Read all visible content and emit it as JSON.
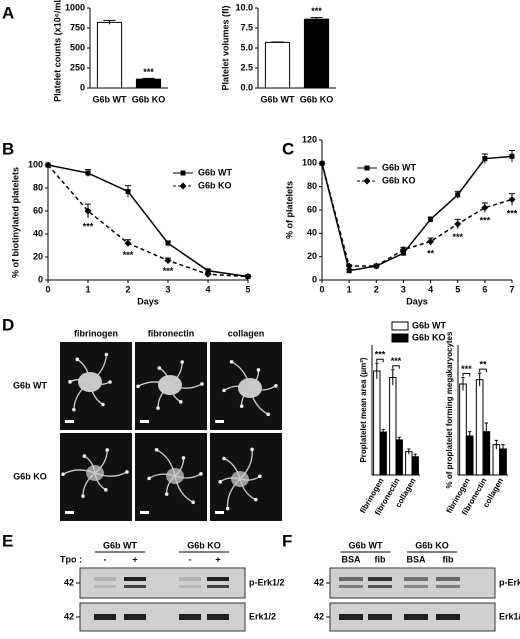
{
  "panels": [
    "A",
    "B",
    "C",
    "D",
    "E",
    "F"
  ],
  "chart_data": [
    {
      "type": "bar",
      "ylabel": "Platelet counts (x10⁶/mL)",
      "categories": [
        "G6b WT",
        "G6b KO"
      ],
      "values": [
        820,
        110
      ],
      "errors": [
        25,
        10
      ],
      "colors": [
        "#ffffff",
        "#000000"
      ],
      "ylim": [
        0,
        1000
      ],
      "yticks": [
        0,
        250,
        500,
        750,
        1000
      ],
      "annotations": [
        {
          "text": "***",
          "x": 1
        }
      ]
    },
    {
      "type": "bar",
      "ylabel": "Platelet volumes (fl)",
      "categories": [
        "G6b WT",
        "G6b KO"
      ],
      "values": [
        5.7,
        8.6
      ],
      "errors": [
        0.05,
        0.2
      ],
      "colors": [
        "#ffffff",
        "#000000"
      ],
      "ylim": [
        0,
        10
      ],
      "yticks": [
        {
          "value": 0,
          "label": "0.0"
        },
        2.5,
        {
          "value": 5,
          "label": "5.0"
        },
        7.5,
        {
          "value": 10,
          "label": "10.0"
        }
      ],
      "annotations": [
        {
          "text": "***",
          "x": 1
        }
      ]
    },
    {
      "type": "line",
      "ylabel": "% of biotinylated platelets",
      "xlabel": "Days",
      "x": [
        0,
        1,
        2,
        3,
        4,
        5
      ],
      "xlim": [
        0,
        5
      ],
      "xticks": [
        0,
        1,
        2,
        3,
        4,
        5
      ],
      "ylim": [
        0,
        100
      ],
      "yticks": [
        0,
        20,
        40,
        60,
        80,
        100
      ],
      "series": [
        {
          "name": "G6b WT",
          "color": "#000000",
          "marker": "square",
          "dashed": false,
          "values": [
            100,
            93,
            77,
            32,
            8,
            3
          ],
          "errors": [
            0,
            3,
            5,
            2,
            1,
            1
          ]
        },
        {
          "name": "G6b KO",
          "color": "#000000",
          "marker": "diamond",
          "dashed": true,
          "values": [
            100,
            60,
            32,
            17,
            5,
            3
          ],
          "errors": [
            0,
            6,
            3,
            2,
            1,
            1
          ]
        }
      ],
      "annotations": [
        {
          "text": "***",
          "x": 1
        },
        {
          "text": "***",
          "x": 2
        },
        {
          "text": "***",
          "x": 3
        }
      ]
    },
    {
      "type": "line",
      "ylabel": "% of platelets",
      "xlabel": "Days",
      "x": [
        0,
        1,
        2,
        3,
        4,
        5,
        6,
        7
      ],
      "xlim": [
        0,
        7
      ],
      "xticks": [
        0,
        1,
        2,
        3,
        4,
        5,
        6,
        7
      ],
      "ylim": [
        0,
        120
      ],
      "yticks": [
        0,
        20,
        40,
        60,
        80,
        100,
        120
      ],
      "series": [
        {
          "name": "G6b WT",
          "color": "#000000",
          "marker": "square",
          "dashed": false,
          "values": [
            100,
            8,
            12,
            23,
            52,
            73,
            104,
            106
          ],
          "errors": [
            0,
            1,
            1,
            2,
            2,
            3,
            4,
            5
          ]
        },
        {
          "name": "G6b KO",
          "color": "#000000",
          "marker": "diamond",
          "dashed": true,
          "values": [
            100,
            12,
            12,
            26,
            33,
            48,
            62,
            69
          ],
          "errors": [
            0,
            1,
            1,
            2,
            3,
            4,
            4,
            5
          ]
        }
      ],
      "annotations": [
        {
          "text": "**",
          "x": 4
        },
        {
          "text": "***",
          "x": 5
        },
        {
          "text": "***",
          "x": 6
        },
        {
          "text": "***",
          "x": 7
        }
      ]
    },
    {
      "type": "bar",
      "ylabel": "Proplatelet mean area (µm²)",
      "categories": [
        "fibrinogen",
        "fibronectin",
        "collagen"
      ],
      "ylim": [
        0,
        100
      ],
      "series": [
        {
          "name": "G6b WT",
          "color": "#ffffff",
          "values": [
            80,
            75,
            18
          ],
          "errors": [
            6,
            6,
            2
          ]
        },
        {
          "name": "G6b KO",
          "color": "#000000",
          "values": [
            33,
            27,
            14
          ],
          "errors": [
            2,
            2,
            2
          ]
        }
      ],
      "annotations": [
        {
          "text": "***",
          "x": 0
        },
        {
          "text": "***",
          "x": 1
        }
      ]
    },
    {
      "type": "bar",
      "ylabel": "% of proplatelet forming megakaryocytes",
      "categories": [
        "fibrinogen",
        "fibronectin",
        "collagen"
      ],
      "ylim": [
        0,
        30
      ],
      "series": [
        {
          "name": "G6b WT",
          "color": "#ffffff",
          "values": [
            21,
            22,
            7
          ],
          "errors": [
            1.5,
            1.5,
            1
          ]
        },
        {
          "name": "G6b KO",
          "color": "#000000",
          "values": [
            9,
            10,
            6
          ],
          "errors": [
            1,
            2,
            1
          ]
        }
      ],
      "annotations": [
        {
          "text": "***",
          "x": 0
        },
        {
          "text": "**",
          "x": 1
        }
      ]
    }
  ],
  "legend_d": [
    "G6b WT",
    "G6b KO"
  ],
  "micrographs": {
    "columns": [
      "fibrinogen",
      "fibronectin",
      "collagen"
    ],
    "rows": [
      "G6b WT",
      "G6b KO"
    ]
  },
  "blot_e": {
    "groups": [
      "G6b WT",
      "G6b KO"
    ],
    "treatment": "Tpo :",
    "lanes": [
      "-",
      "+",
      "-",
      "+"
    ],
    "bands": [
      "p-Erk1/2",
      "Erk1/2"
    ],
    "marker": [
      "42",
      "42"
    ]
  },
  "blot_f": {
    "groups": [
      "G6b WT",
      "G6b KO"
    ],
    "lanes": [
      "BSA",
      "fib",
      "BSA",
      "fib"
    ],
    "bands": [
      "p-Erk1/2",
      "Erk1/2"
    ],
    "marker": [
      "42",
      "42"
    ]
  }
}
